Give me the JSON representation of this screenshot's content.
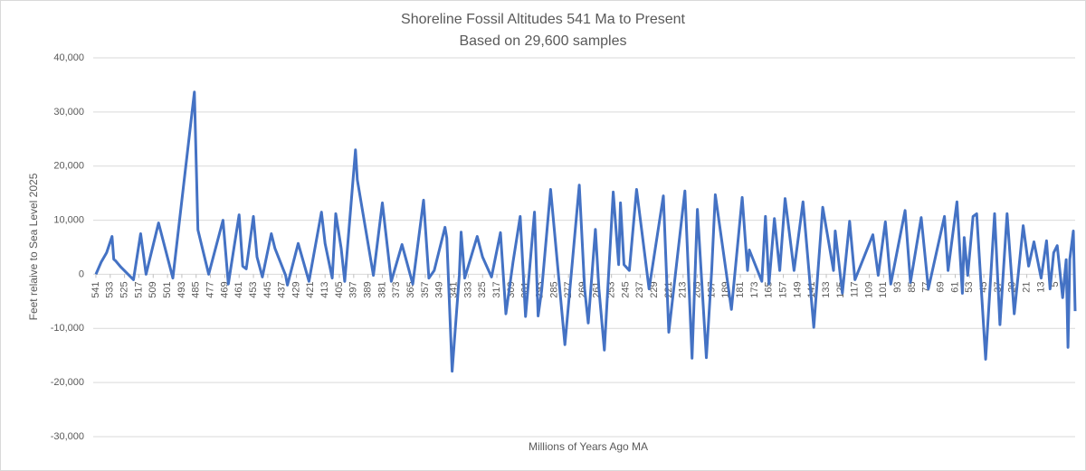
{
  "chart_data": {
    "type": "line",
    "title": "Shoreline Fossil Altitudes 541 Ma to Present",
    "subtitle": "Based on 29,600 samples",
    "x_label": "Millions of Years Ago MA",
    "y_label": "Feet relaive to Sea Level 2025",
    "color": "#4472c4",
    "grid": true,
    "xlim": [
      542.5,
      -6
    ],
    "ylim": [
      -30000,
      40000
    ],
    "yticks": [
      {
        "value": -30000,
        "label": "-30,000"
      },
      {
        "value": -20000,
        "label": "-20,000"
      },
      {
        "value": -10000,
        "label": "-10,000"
      },
      0,
      {
        "value": 10000,
        "label": "10,000"
      },
      {
        "value": 20000,
        "label": "20,000"
      },
      {
        "value": 30000,
        "label": "30,000"
      },
      {
        "value": 40000,
        "label": "40,000"
      }
    ],
    "xticks": [
      541,
      533,
      525,
      517,
      509,
      501,
      493,
      485,
      477,
      469,
      461,
      453,
      445,
      437,
      429,
      421,
      413,
      405,
      397,
      389,
      381,
      373,
      365,
      357,
      349,
      341,
      333,
      325,
      317,
      309,
      301,
      293,
      285,
      277,
      269,
      261,
      253,
      245,
      237,
      229,
      221,
      213,
      205,
      197,
      189,
      181,
      173,
      165,
      157,
      149,
      141,
      133,
      125,
      117,
      109,
      101,
      93,
      85,
      77,
      69,
      61,
      53,
      45,
      37,
      29,
      21,
      13,
      5
    ],
    "x": [
      541,
      538,
      535,
      532,
      531,
      530,
      527,
      520,
      516,
      513,
      506,
      498,
      486,
      484,
      478,
      470,
      467,
      461,
      459,
      457,
      453,
      451,
      448,
      443,
      441,
      435,
      434,
      428,
      422,
      415,
      413,
      409,
      407,
      404,
      402,
      396,
      395,
      386,
      381,
      376,
      370,
      364,
      358,
      355,
      352,
      346,
      345,
      342,
      338,
      337,
      335,
      328,
      325,
      320,
      315,
      312,
      308,
      304,
      301,
      296,
      294,
      292,
      287,
      279,
      271,
      268,
      266,
      262,
      260,
      257,
      252,
      249,
      248,
      246,
      243,
      239,
      232,
      224,
      221,
      212,
      208,
      205,
      200,
      197,
      195,
      186,
      180,
      177,
      176,
      169,
      167,
      165,
      162,
      159,
      156,
      151,
      146,
      140,
      135,
      129,
      128,
      124,
      120,
      117,
      107,
      104,
      100,
      97,
      89,
      86,
      80,
      76,
      67,
      65,
      60,
      57,
      56,
      54,
      51,
      49,
      44,
      39,
      36,
      32,
      28,
      23,
      20,
      17,
      13,
      10,
      8,
      6,
      4,
      1,
      -1,
      -2,
      -3,
      -5,
      -6
    ],
    "values": [
      0,
      2300,
      4000,
      7000,
      2800,
      2500,
      1300,
      -1000,
      7500,
      0,
      9500,
      -700,
      33700,
      8200,
      0,
      10000,
      -1800,
      11000,
      1500,
      1000,
      10700,
      3200,
      -500,
      7500,
      4800,
      -200,
      -2000,
      5700,
      -1300,
      11500,
      5700,
      -700,
      11200,
      4800,
      -1300,
      23000,
      17500,
      -200,
      13200,
      -1300,
      5500,
      -1800,
      13700,
      -700,
      700,
      8700,
      6700,
      -17900,
      -200,
      7800,
      -700,
      7000,
      3200,
      -500,
      7700,
      -7300,
      2300,
      10700,
      -7800,
      11500,
      -7700,
      -3000,
      15700,
      -13000,
      16500,
      -2700,
      -9000,
      8300,
      -2700,
      -14000,
      15200,
      1800,
      13200,
      1800,
      700,
      15700,
      -2700,
      14500,
      -10700,
      15400,
      -15500,
      12000,
      -15400,
      700,
      14700,
      -6500,
      14200,
      700,
      4500,
      -1300,
      10700,
      -1800,
      10300,
      700,
      14000,
      700,
      13400,
      -9800,
      12400,
      700,
      8000,
      -3500,
      9800,
      -1000,
      7300,
      -200,
      9700,
      -1800,
      11800,
      -1500,
      10500,
      -2700,
      10700,
      700,
      13400,
      -3500,
      6800,
      -200,
      10700,
      11200,
      -15700,
      11200,
      -9300,
      11200,
      -7300,
      9000,
      1500,
      6000,
      -700,
      6200,
      -2700,
      4000,
      5300,
      -4300,
      2700,
      -13500,
      2800,
      8000,
      -6800
    ]
  }
}
